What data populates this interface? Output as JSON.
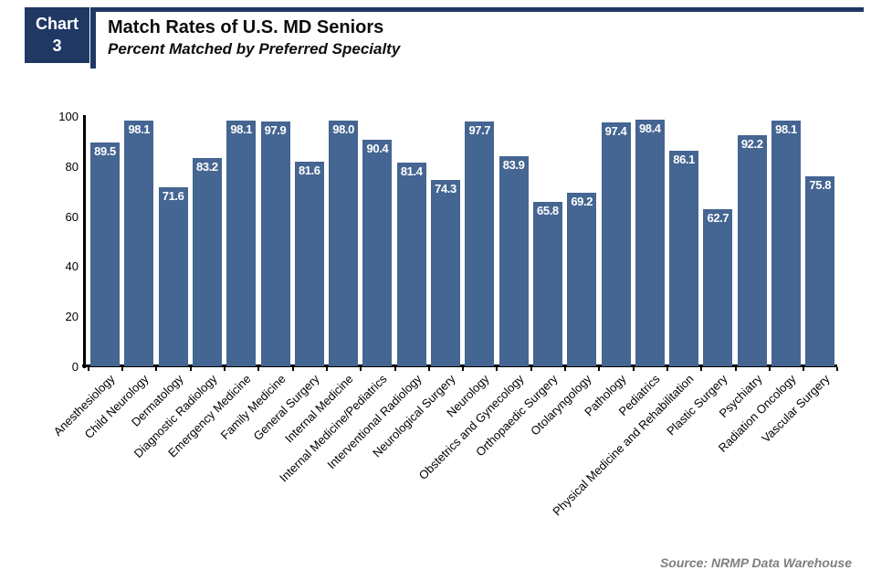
{
  "header": {
    "badge_line1": "Chart",
    "badge_line2": "3",
    "title": "Match Rates of U.S. MD Seniors",
    "subtitle": "Percent Matched by Preferred Specialty"
  },
  "footer": {
    "source": "Source: NRMP Data Warehouse"
  },
  "colors": {
    "navy": "#1f3864",
    "bar_blue": "#456592",
    "axis_black": "#000000",
    "value_label_white": "#ffffff",
    "source_gray": "#7f7f7f"
  },
  "chart_data": {
    "type": "bar",
    "title": "Match Rates of U.S. MD Seniors",
    "subtitle": "Percent Matched by Preferred Specialty",
    "xlabel": "",
    "ylabel": "",
    "ylim": [
      0,
      100
    ],
    "yticks": [
      0,
      20,
      40,
      60,
      80,
      100
    ],
    "grid": false,
    "legend": "none",
    "bar_color": "#456592",
    "value_label_position": "inside-top, white bold",
    "x_label_rotation_deg": 45,
    "categories": [
      "Anesthesiology",
      "Child Neurology",
      "Dermatology",
      "Diagnostic Radiology",
      "Emergency Medicine",
      "Family Medicine",
      "General Surgery",
      "Internal Medicine",
      "Internal Medicine/Pediatrics",
      "Interventional Radiology",
      "Neurological Surgery",
      "Neurology",
      "Obstetrics and Gynecology",
      "Orthopaedic Surgery",
      "Otolaryngology",
      "Pathology",
      "Pediatrics",
      "Physical Medicine and Rehabilitation",
      "Plastic Surgery",
      "Psychiatry",
      "Radiation Oncology",
      "Vascular Surgery"
    ],
    "values": [
      89.5,
      98.1,
      71.6,
      83.2,
      98.1,
      97.9,
      81.6,
      98.0,
      90.4,
      81.4,
      74.3,
      97.7,
      83.9,
      65.8,
      69.2,
      97.4,
      98.4,
      86.1,
      62.7,
      92.2,
      98.1,
      75.8
    ]
  }
}
